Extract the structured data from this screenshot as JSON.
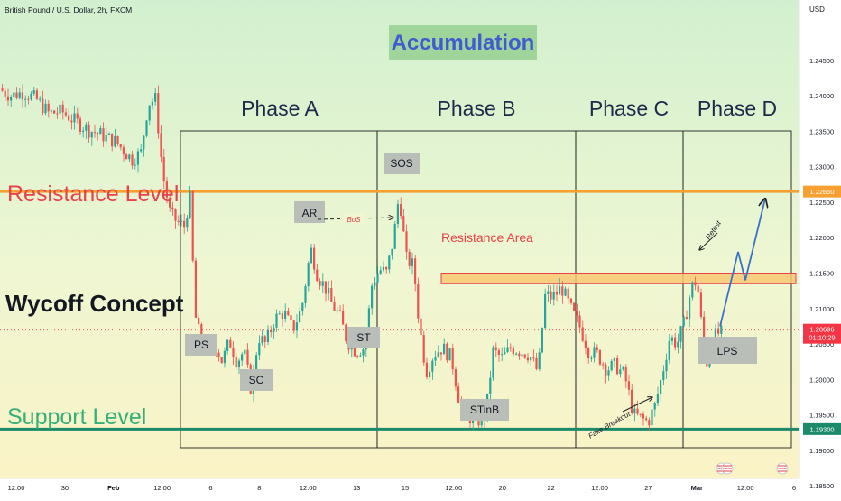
{
  "header": {
    "symbol_title": "British Pound / U.S. Dollar, 2h, FXCM"
  },
  "annotations": {
    "title": "Accumulation",
    "left_labels": {
      "resistance": "Resistance Level",
      "concept": "Wycoff Concept",
      "support": "Support Level"
    },
    "phases": [
      "Phase A",
      "Phase B",
      "Phase C",
      "Phase D"
    ],
    "events": {
      "ps": "PS",
      "sc": "SC",
      "ar": "AR",
      "st": "ST",
      "sos": "SOS",
      "stinb": "STinB",
      "lps": "LPS"
    },
    "bos": "BoS",
    "resistance_area": "Resistance Area",
    "retest": "Retest",
    "fake_breakout": "Fake Breakout"
  },
  "price_axis": {
    "currency": "USD",
    "ticks": [
      "1.24500",
      "1.24000",
      "1.23500",
      "1.23000",
      "1.22500",
      "1.22000",
      "1.21500",
      "1.21000",
      "1.20500",
      "1.20000",
      "1.19500",
      "1.19000",
      "1.18500"
    ],
    "current_price": "1.20696",
    "countdown": "01:10:29",
    "resistance_tag": "1.22650",
    "support_tag": "1.19300"
  },
  "time_axis": {
    "ticks": [
      "12:00",
      "30",
      "Feb",
      "12:00",
      "6",
      "8",
      "12:00",
      "13",
      "15",
      "12:00",
      "20",
      "22",
      "12:00",
      "27",
      "Mar",
      "12:00",
      "6"
    ]
  },
  "colors": {
    "resistance_line": "#f5a030",
    "support_line": "#1c8a6a",
    "resistance_text": "#e8414a",
    "support_text": "#35b07a",
    "phase_text": "#1c2a4a",
    "accumulation_bg": "#9fd49a",
    "accumulation_text": "#3f5bd0",
    "bull_candle": "#26a69a",
    "bear_candle": "#ef5350",
    "price_tag": "#f23645",
    "resistance_zone": "#f7c873"
  },
  "chart_data": {
    "type": "candlestick",
    "title": "British Pound / U.S. Dollar, 2h, FXCM",
    "ylabel": "USD",
    "ylim": [
      1.1835,
      1.2535
    ],
    "levels": {
      "resistance": 1.2265,
      "support": 1.193,
      "current": 1.20696
    },
    "resistance_area": [
      1.2135,
      1.215
    ],
    "path": [
      [
        0,
        1.241
      ],
      [
        14,
        1.24
      ],
      [
        28,
        1.2405
      ],
      [
        42,
        1.2395
      ],
      [
        56,
        1.2375
      ],
      [
        70,
        1.2378
      ],
      [
        84,
        1.2365
      ],
      [
        100,
        1.2352
      ],
      [
        114,
        1.2345
      ],
      [
        130,
        1.2335
      ],
      [
        148,
        1.231
      ],
      [
        158,
        1.232
      ],
      [
        166,
        1.239
      ],
      [
        174,
        1.2395
      ],
      [
        182,
        1.229
      ],
      [
        190,
        1.2235
      ],
      [
        198,
        1.2222
      ],
      [
        206,
        1.2215
      ],
      [
        212,
        1.226
      ],
      [
        218,
        1.209
      ],
      [
        224,
        1.2055
      ],
      [
        232,
        1.2035
      ],
      [
        240,
        1.205
      ],
      [
        248,
        1.2025
      ],
      [
        256,
        1.2055
      ],
      [
        264,
        1.2025
      ],
      [
        272,
        1.204
      ],
      [
        280,
        1.1985
      ],
      [
        288,
        1.206
      ],
      [
        296,
        1.205
      ],
      [
        306,
        1.2085
      ],
      [
        316,
        1.2095
      ],
      [
        326,
        1.207
      ],
      [
        336,
        1.21
      ],
      [
        346,
        1.2185
      ],
      [
        354,
        1.2145
      ],
      [
        362,
        1.213
      ],
      [
        370,
        1.2105
      ],
      [
        378,
        1.209
      ],
      [
        386,
        1.2055
      ],
      [
        396,
        1.204
      ],
      [
        406,
        1.2045
      ],
      [
        414,
        1.2135
      ],
      [
        422,
        1.2155
      ],
      [
        430,
        1.215
      ],
      [
        438,
        1.22
      ],
      [
        444,
        1.2262
      ],
      [
        452,
        1.217
      ],
      [
        460,
        1.216
      ],
      [
        466,
        1.208
      ],
      [
        474,
        1.201
      ],
      [
        482,
        1.2035
      ],
      [
        492,
        1.2045
      ],
      [
        502,
        1.203
      ],
      [
        510,
        1.1975
      ],
      [
        518,
        1.195
      ],
      [
        530,
        1.194
      ],
      [
        540,
        1.195
      ],
      [
        548,
        1.204
      ],
      [
        558,
        1.203
      ],
      [
        568,
        1.2045
      ],
      [
        578,
        1.204
      ],
      [
        588,
        1.2035
      ],
      [
        598,
        1.201
      ],
      [
        606,
        1.212
      ],
      [
        614,
        1.2115
      ],
      [
        624,
        1.213
      ],
      [
        634,
        1.21
      ],
      [
        644,
        1.2075
      ],
      [
        654,
        1.204
      ],
      [
        664,
        1.2035
      ],
      [
        674,
        1.2015
      ],
      [
        684,
        1.202
      ],
      [
        694,
        1.2005
      ],
      [
        704,
        1.195
      ],
      [
        712,
        1.1945
      ],
      [
        720,
        1.194
      ],
      [
        728,
        1.1965
      ],
      [
        736,
        1.201
      ],
      [
        744,
        1.206
      ],
      [
        752,
        1.205
      ],
      [
        760,
        1.208
      ],
      [
        768,
        1.213
      ],
      [
        774,
        1.214
      ],
      [
        780,
        1.2065
      ],
      [
        786,
        1.2015
      ],
      [
        792,
        1.206
      ],
      [
        798,
        1.2065
      ]
    ],
    "projection": [
      [
        798,
        1.2075
      ],
      [
        818,
        1.218
      ],
      [
        826,
        1.214
      ],
      [
        848,
        1.2255
      ]
    ]
  }
}
